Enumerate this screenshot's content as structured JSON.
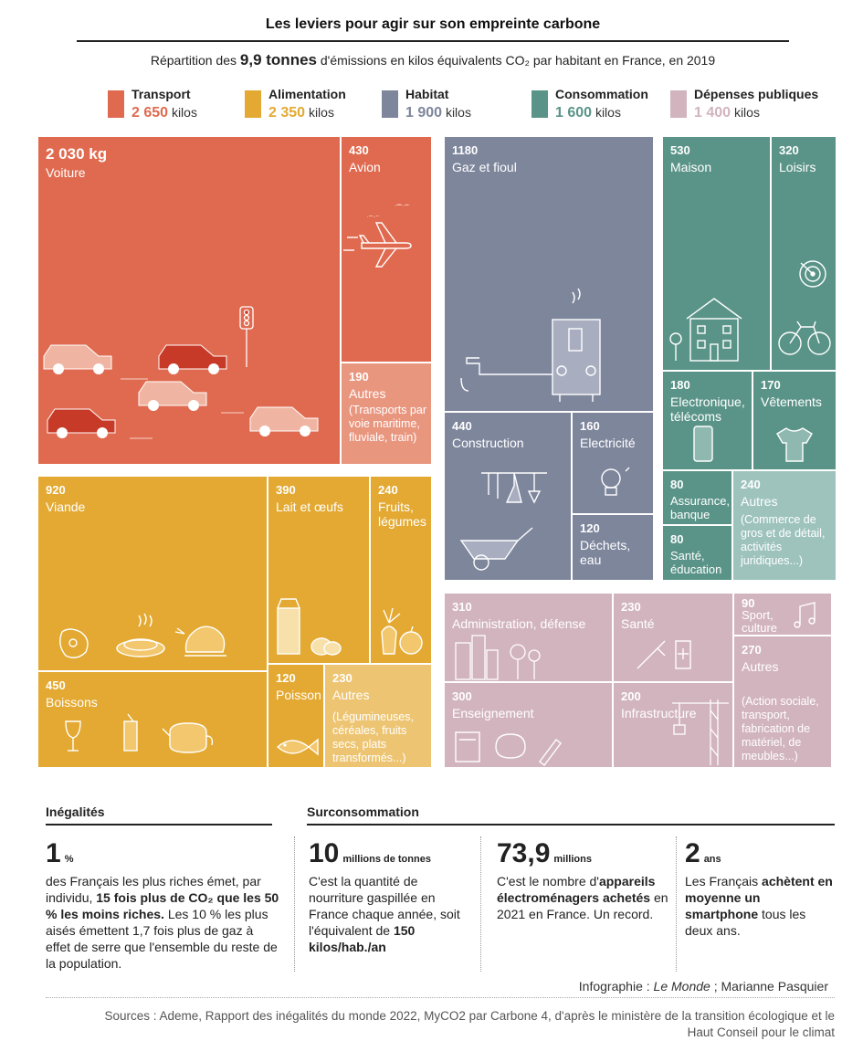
{
  "title": "Les leviers pour agir sur son empreinte carbone",
  "subtitle": {
    "before": "Répartition des ",
    "bold": "9,9 tonnes",
    "after": " d'émissions en kilos équivalents CO₂ par habitant en France, en 2019"
  },
  "legend": [
    {
      "name": "Transport",
      "value": "2 650",
      "unit": "kilos",
      "color": "#e06a4f"
    },
    {
      "name": "Alimentation",
      "value": "2 350",
      "unit": "kilos",
      "color": "#e3a932"
    },
    {
      "name": "Habitat",
      "value": "1 900",
      "unit": "kilos",
      "color": "#7e869c"
    },
    {
      "name": "Consommation",
      "value": "1 600",
      "unit": "kilos",
      "color": "#5a9488"
    },
    {
      "name": "Dépenses publiques",
      "value": "1 400",
      "unit": "kilos",
      "color": "#d2b4be"
    }
  ],
  "chart_data": {
    "type": "treemap",
    "title": "Les leviers pour agir sur son empreinte carbone",
    "unit": "kg CO₂e par habitant",
    "groups": [
      {
        "name": "Transport",
        "total": 2650,
        "items": [
          {
            "name": "Voiture",
            "value": 2030,
            "value_label": "2 030 kg"
          },
          {
            "name": "Avion",
            "value": 430,
            "value_label": "430"
          },
          {
            "name": "Autres",
            "value": 190,
            "value_label": "190",
            "note": "(Transports par voie maritime, fluviale, train)"
          }
        ]
      },
      {
        "name": "Alimentation",
        "total": 2350,
        "items": [
          {
            "name": "Viande",
            "value": 920,
            "value_label": "920"
          },
          {
            "name": "Lait et œufs",
            "value": 390,
            "value_label": "390"
          },
          {
            "name": "Fruits, légumes",
            "value": 240,
            "value_label": "240"
          },
          {
            "name": "Boissons",
            "value": 450,
            "value_label": "450"
          },
          {
            "name": "Poisson",
            "value": 120,
            "value_label": "120"
          },
          {
            "name": "Autres",
            "value": 230,
            "value_label": "230",
            "note": "(Légumineuses, céréales, fruits secs, plats transformés...)"
          }
        ]
      },
      {
        "name": "Habitat",
        "total": 1900,
        "items": [
          {
            "name": "Gaz et fioul",
            "value": 1180,
            "value_label": "1180"
          },
          {
            "name": "Construction",
            "value": 440,
            "value_label": "440"
          },
          {
            "name": "Electricité",
            "value": 160,
            "value_label": "160"
          },
          {
            "name": "Déchets, eau",
            "value": 120,
            "value_label": "120"
          }
        ]
      },
      {
        "name": "Consommation",
        "total": 1600,
        "items": [
          {
            "name": "Maison",
            "value": 530,
            "value_label": "530"
          },
          {
            "name": "Loisirs",
            "value": 320,
            "value_label": "320"
          },
          {
            "name": "Electronique, télécoms",
            "value": 180,
            "value_label": "180"
          },
          {
            "name": "Vêtements",
            "value": 170,
            "value_label": "170"
          },
          {
            "name": "Assurance, banque",
            "value": 80,
            "value_label": "80"
          },
          {
            "name": "Santé, éducation",
            "value": 80,
            "value_label": "80"
          },
          {
            "name": "Autres",
            "value": 240,
            "value_label": "240",
            "note": "(Commerce de gros et de détail, activités juridiques...)"
          }
        ]
      },
      {
        "name": "Dépenses publiques",
        "total": 1400,
        "items": [
          {
            "name": "Administration, défense",
            "value": 310,
            "value_label": "310"
          },
          {
            "name": "Santé",
            "value": 230,
            "value_label": "230"
          },
          {
            "name": "Sport, culture",
            "value": 90,
            "value_label": "90"
          },
          {
            "name": "Enseignement",
            "value": 300,
            "value_label": "300"
          },
          {
            "name": "Infrastructure",
            "value": 200,
            "value_label": "200"
          },
          {
            "name": "Autres",
            "value": 270,
            "value_label": "270",
            "note": "(Action sociale, transport, fabrication de matériel, de meubles...)"
          }
        ]
      }
    ]
  },
  "inegalites": {
    "heading": "Inégalités",
    "big": "1",
    "unit": "%",
    "t1": "des Français les plus riches émet, par individu, ",
    "t2": "15 fois plus de CO₂ que les 50 % les moins riches.",
    "t3": " Les 10 % les plus aisés émettent 1,7 fois plus de gaz à effet de serre que l'ensemble du reste de la population."
  },
  "surconsommation": {
    "heading": "Surconsommation",
    "stats": [
      {
        "big": "10",
        "unit": "millions de tonnes",
        "t1": "C'est la quantité de nourriture gaspillée en France chaque année, soit l'équivalent de ",
        "t2": "150 kilos/hab./an",
        "t3": ""
      },
      {
        "big": "73,9",
        "unit": "millions",
        "t1": "C'est le nombre d'",
        "t2": "appareils électroménagers achetés",
        "t3": " en 2021 en France. Un record."
      },
      {
        "big": "2",
        "unit": "ans",
        "t1": "Les Français ",
        "t2": "achètent en moyenne un smartphone",
        "t3": " tous les deux ans."
      }
    ]
  },
  "credit": {
    "prefix": "Infographie : ",
    "pub": "Le Monde",
    "suffix": " ; Marianne Pasquier"
  },
  "sources": "Sources : Ademe, Rapport des inégalités du monde 2022, MyCO2 par Carbone 4, d'après le ministère de la transition écologique et le Haut Conseil pour le climat"
}
